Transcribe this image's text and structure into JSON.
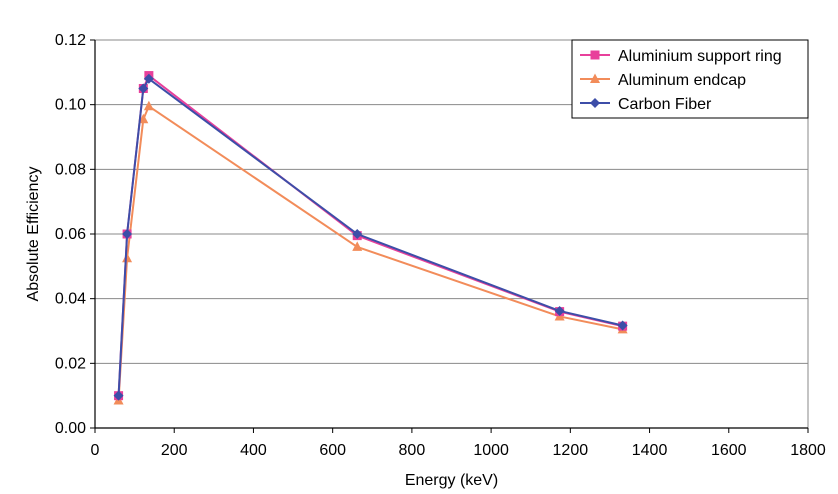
{
  "chart_data": {
    "type": "line",
    "xlabel": "Energy (keV)",
    "ylabel": "Absolute Efficiency",
    "xlim": [
      0,
      1800
    ],
    "ylim": [
      0,
      0.12
    ],
    "x_ticks": [
      0,
      200,
      400,
      600,
      800,
      1000,
      1200,
      1400,
      1600,
      1800
    ],
    "y_ticks": [
      0.0,
      0.02,
      0.04,
      0.06,
      0.08,
      0.1,
      0.12
    ],
    "x_tick_labels": [
      "0",
      "200",
      "400",
      "600",
      "800",
      "1000",
      "1200",
      "1400",
      "1600",
      "1800"
    ],
    "y_tick_labels": [
      "0.00",
      "0.02",
      "0.04",
      "0.06",
      "0.08",
      "0.10",
      "0.12"
    ],
    "grid": "horizontal",
    "legend_position": "top-right",
    "series": [
      {
        "name": "Aluminium support ring",
        "color": "#e8409b",
        "marker": "square",
        "x": [
          59.5,
          81,
          122,
          136,
          662,
          1173,
          1332
        ],
        "y": [
          0.01,
          0.06,
          0.105,
          0.109,
          0.0595,
          0.036,
          0.0315
        ]
      },
      {
        "name": "Aluminum endcap",
        "color": "#f28c5a",
        "marker": "triangle",
        "x": [
          59.5,
          81,
          122,
          136,
          662,
          1173,
          1332
        ],
        "y": [
          0.0085,
          0.0525,
          0.0955,
          0.0995,
          0.056,
          0.0345,
          0.0305
        ]
      },
      {
        "name": "Carbon Fiber",
        "color": "#3d4ea8",
        "marker": "diamond",
        "x": [
          59.5,
          81,
          122,
          136,
          662,
          1173,
          1332
        ],
        "y": [
          0.01,
          0.06,
          0.105,
          0.108,
          0.06,
          0.0362,
          0.0317
        ]
      }
    ]
  }
}
